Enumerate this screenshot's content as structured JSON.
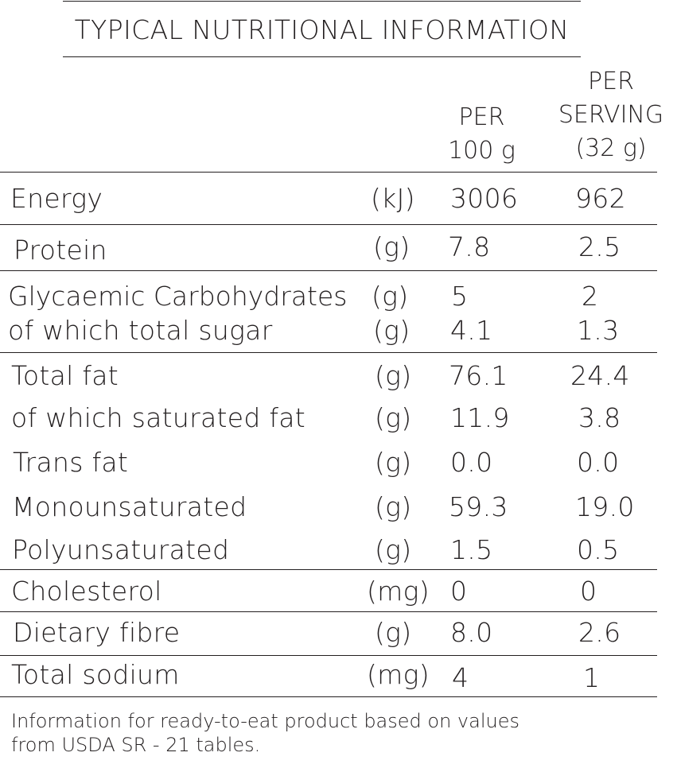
{
  "title": "TYPICAL NUTRITIONAL INFORMATION",
  "headers": {
    "per100": [
      "PER",
      "100 g"
    ],
    "perServing": [
      "PER",
      "SERVING",
      "(32 g)"
    ]
  },
  "rows": [
    {
      "name": "Energy",
      "unit": "(kJ)",
      "per100": "3006",
      "perServing": "962"
    },
    {
      "name": "Protein",
      "unit": "(g)",
      "per100": "7.8",
      "perServing": "2.5"
    },
    {
      "name": "Glycaemic Carbohydrates",
      "unit": "(g)",
      "per100": "5",
      "perServing": "2"
    },
    {
      "name": "of which total sugar",
      "unit": "(g)",
      "per100": "4.1",
      "perServing": "1.3"
    },
    {
      "name": "Total fat",
      "unit": "(g)",
      "per100": "76.1",
      "perServing": "24.4"
    },
    {
      "name": "of which saturated fat",
      "unit": "(g)",
      "per100": "11.9",
      "perServing": "3.8"
    },
    {
      "name": "Trans fat",
      "unit": "(g)",
      "per100": "0.0",
      "perServing": "0.0"
    },
    {
      "name": "Monounsaturated",
      "unit": "(g)",
      "per100": "59.3",
      "perServing": "19.0"
    },
    {
      "name": "Polyunsaturated",
      "unit": "(g)",
      "per100": "1.5",
      "perServing": "0.5"
    },
    {
      "name": "Cholesterol",
      "unit": "(mg)",
      "per100": "0",
      "perServing": "0"
    },
    {
      "name": "Dietary fibre",
      "unit": "(g)",
      "per100": "8.0",
      "perServing": "2.6"
    },
    {
      "name": "Total sodium",
      "unit": "(mg)",
      "per100": "4",
      "perServing": "1"
    }
  ],
  "footnote": [
    "Information for ready-to-eat product based on values",
    "from USDA SR - 21 tables."
  ]
}
